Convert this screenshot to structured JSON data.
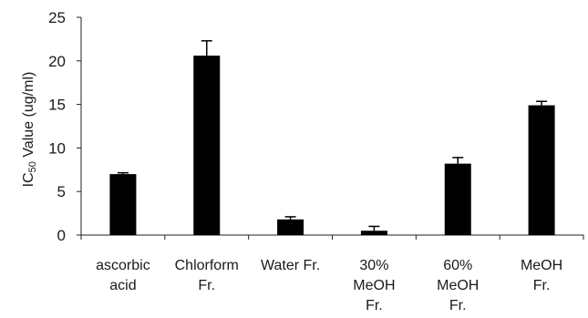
{
  "chart_data": {
    "type": "bar",
    "categories": [
      [
        "ascorbic",
        "acid"
      ],
      [
        "Chlorform",
        "Fr."
      ],
      [
        "Water  Fr."
      ],
      [
        "30%",
        "MeOH",
        "Fr."
      ],
      [
        "60%",
        "MeOH",
        "Fr."
      ],
      [
        "MeOH",
        "Fr."
      ]
    ],
    "values": [
      7.0,
      20.6,
      1.8,
      0.5,
      8.2,
      14.9
    ],
    "error": [
      0.15,
      1.7,
      0.3,
      0.5,
      0.7,
      0.45
    ],
    "ylabel": {
      "prefix": "IC",
      "subscript": "50",
      "suffix": " Value (ug/ml)"
    },
    "ylim": [
      0,
      25
    ],
    "yticks": [
      0,
      5,
      10,
      15,
      20,
      25
    ],
    "bar_color": "#000000",
    "grid": false
  }
}
